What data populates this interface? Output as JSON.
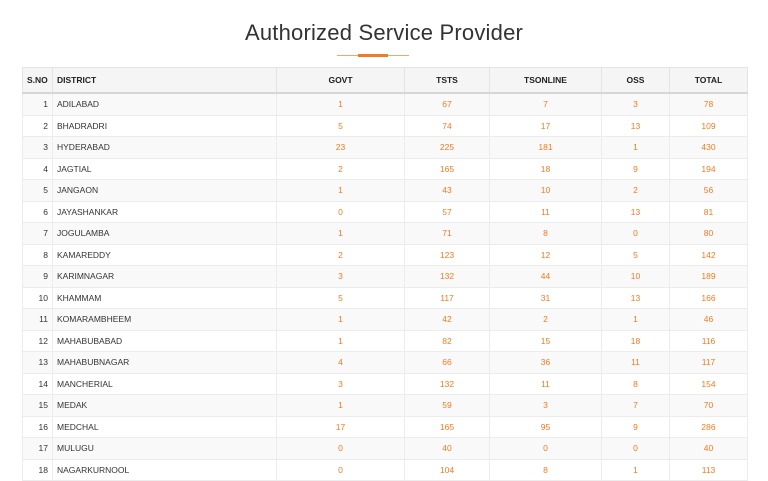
{
  "page": {
    "title": "Authorized Service Provider"
  },
  "table": {
    "headers": [
      "S.NO",
      "DISTRICT",
      "GOVT",
      "TSTS",
      "TSONLINE",
      "OSS",
      "TOTAL"
    ],
    "rows": [
      {
        "sno": "1",
        "district": "ADILABAD",
        "govt": "1",
        "tsts": "67",
        "tsonline": "7",
        "oss": "3",
        "total": "78"
      },
      {
        "sno": "2",
        "district": "BHADRADRI",
        "govt": "5",
        "tsts": "74",
        "tsonline": "17",
        "oss": "13",
        "total": "109"
      },
      {
        "sno": "3",
        "district": "HYDERABAD",
        "govt": "23",
        "tsts": "225",
        "tsonline": "181",
        "oss": "1",
        "total": "430"
      },
      {
        "sno": "4",
        "district": "JAGTIAL",
        "govt": "2",
        "tsts": "165",
        "tsonline": "18",
        "oss": "9",
        "total": "194"
      },
      {
        "sno": "5",
        "district": "JANGAON",
        "govt": "1",
        "tsts": "43",
        "tsonline": "10",
        "oss": "2",
        "total": "56"
      },
      {
        "sno": "6",
        "district": "JAYASHANKAR",
        "govt": "0",
        "tsts": "57",
        "tsonline": "11",
        "oss": "13",
        "total": "81"
      },
      {
        "sno": "7",
        "district": "JOGULAMBA",
        "govt": "1",
        "tsts": "71",
        "tsonline": "8",
        "oss": "0",
        "total": "80"
      },
      {
        "sno": "8",
        "district": "KAMAREDDY",
        "govt": "2",
        "tsts": "123",
        "tsonline": "12",
        "oss": "5",
        "total": "142"
      },
      {
        "sno": "9",
        "district": "KARIMNAGAR",
        "govt": "3",
        "tsts": "132",
        "tsonline": "44",
        "oss": "10",
        "total": "189"
      },
      {
        "sno": "10",
        "district": "KHAMMAM",
        "govt": "5",
        "tsts": "117",
        "tsonline": "31",
        "oss": "13",
        "total": "166"
      },
      {
        "sno": "11",
        "district": "KOMARAMBHEEM",
        "govt": "1",
        "tsts": "42",
        "tsonline": "2",
        "oss": "1",
        "total": "46"
      },
      {
        "sno": "12",
        "district": "MAHABUBABAD",
        "govt": "1",
        "tsts": "82",
        "tsonline": "15",
        "oss": "18",
        "total": "116"
      },
      {
        "sno": "13",
        "district": "MAHABUBNAGAR",
        "govt": "4",
        "tsts": "66",
        "tsonline": "36",
        "oss": "11",
        "total": "117"
      },
      {
        "sno": "14",
        "district": "MANCHERIAL",
        "govt": "3",
        "tsts": "132",
        "tsonline": "11",
        "oss": "8",
        "total": "154"
      },
      {
        "sno": "15",
        "district": "MEDAK",
        "govt": "1",
        "tsts": "59",
        "tsonline": "3",
        "oss": "7",
        "total": "70"
      },
      {
        "sno": "16",
        "district": "MEDCHAL",
        "govt": "17",
        "tsts": "165",
        "tsonline": "95",
        "oss": "9",
        "total": "286"
      },
      {
        "sno": "17",
        "district": "MULUGU",
        "govt": "0",
        "tsts": "40",
        "tsonline": "0",
        "oss": "0",
        "total": "40"
      },
      {
        "sno": "18",
        "district": "NAGARKURNOOL",
        "govt": "0",
        "tsts": "104",
        "tsonline": "8",
        "oss": "1",
        "total": "113"
      }
    ]
  },
  "colors": {
    "accent": "#f07b22",
    "title_text": "#333333"
  }
}
